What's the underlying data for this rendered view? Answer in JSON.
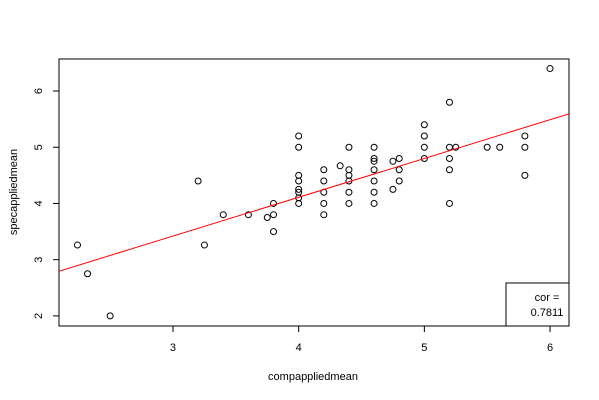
{
  "chart_data": {
    "type": "scatter",
    "xlabel": "compappliedmean",
    "ylabel": "specappliedmean",
    "x": [
      2.24,
      2.32,
      2.5,
      3.2,
      3.25,
      3.4,
      3.6,
      3.75,
      3.8,
      3.8,
      3.8,
      4,
      4,
      4,
      4,
      4,
      4,
      4,
      4,
      4.2,
      4.2,
      4.2,
      4.2,
      4.2,
      4.33,
      4.4,
      4.4,
      4.4,
      4.4,
      4.4,
      4.4,
      4.6,
      4.6,
      4.6,
      4.6,
      4.6,
      4.6,
      4.6,
      4.75,
      4.75,
      4.8,
      4.8,
      4.8,
      5,
      5,
      5,
      5,
      5.2,
      5.2,
      5.2,
      5.2,
      5.2,
      5.25,
      5.5,
      5.6,
      5.8,
      5.8,
      5.8,
      6
    ],
    "y": [
      3.26,
      2.75,
      2.0,
      4.4,
      3.26,
      3.8,
      3.8,
      3.75,
      3.8,
      4.0,
      3.5,
      4.0,
      4.1,
      4.2,
      4.25,
      4.4,
      4.5,
      5.0,
      5.2,
      3.8,
      4.0,
      4.2,
      4.4,
      4.6,
      4.67,
      4.0,
      4.2,
      4.4,
      4.5,
      4.6,
      5.0,
      4.0,
      4.2,
      4.4,
      4.6,
      4.75,
      4.8,
      5.0,
      4.25,
      4.75,
      4.4,
      4.6,
      4.8,
      4.8,
      5.0,
      5.2,
      5.4,
      4.0,
      4.6,
      4.8,
      5.0,
      5.8,
      5.0,
      5.0,
      5.0,
      4.5,
      5.0,
      5.2,
      6.4
    ],
    "color": "#000000",
    "fit_line": {
      "intercept": 1.35,
      "slope": 0.69,
      "color": "#ff0000"
    },
    "xlim": [
      2.093,
      6.151
    ],
    "xticks": [
      3,
      4,
      5,
      6
    ],
    "ylim": [
      1.82,
      6.57
    ],
    "yticks": [
      2,
      3,
      4,
      5,
      6
    ],
    "legend": {
      "position": "bottom-right",
      "lines": [
        "cor =",
        "0.7811"
      ]
    }
  }
}
